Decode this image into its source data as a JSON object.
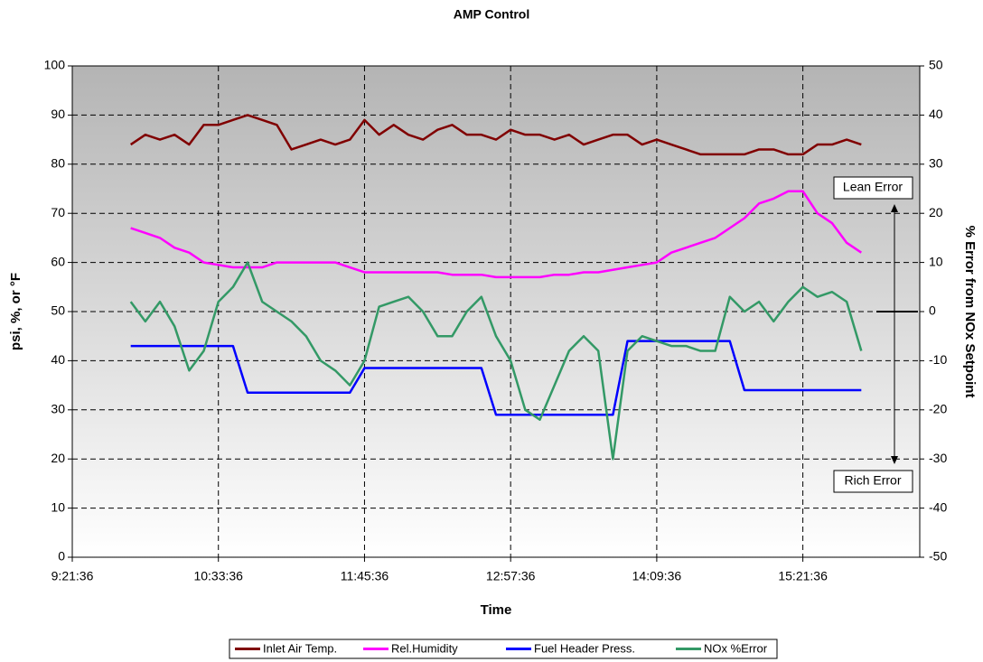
{
  "chart_data": {
    "type": "line",
    "title": "AMP Control",
    "xlabel": "Time",
    "ylabel": "psi, %, or °F",
    "y2label": "% Error from NOx Setpoint",
    "annotations": [
      "Lean Error",
      "Rich Error"
    ],
    "xlim": [
      0.39,
      0.68
    ],
    "xticks": [
      {
        "value": 0.39,
        "label": "9:21:36"
      },
      {
        "value": 0.44,
        "label": "10:33:36"
      },
      {
        "value": 0.49,
        "label": "11:45:36"
      },
      {
        "value": 0.54,
        "label": "12:57:36"
      },
      {
        "value": 0.59,
        "label": "14:09:36"
      },
      {
        "value": 0.64,
        "label": "15:21:36"
      }
    ],
    "ylim": [
      0,
      100
    ],
    "yticks": [
      0,
      10,
      20,
      30,
      40,
      50,
      60,
      70,
      80,
      90,
      100
    ],
    "y2lim": [
      -50,
      50
    ],
    "y2ticks": [
      -50,
      -40,
      -30,
      -20,
      -10,
      0,
      10,
      20,
      30,
      40,
      50
    ],
    "grid": true,
    "legend": "bottom",
    "x": [
      0.41,
      0.415,
      0.42,
      0.425,
      0.43,
      0.435,
      0.44,
      0.445,
      0.45,
      0.455,
      0.46,
      0.465,
      0.47,
      0.475,
      0.48,
      0.485,
      0.49,
      0.495,
      0.5,
      0.505,
      0.51,
      0.515,
      0.52,
      0.525,
      0.53,
      0.535,
      0.54,
      0.545,
      0.55,
      0.555,
      0.56,
      0.565,
      0.57,
      0.575,
      0.58,
      0.585,
      0.59,
      0.595,
      0.6,
      0.605,
      0.61,
      0.615,
      0.62,
      0.625,
      0.63,
      0.635,
      0.64,
      0.645,
      0.65,
      0.655,
      0.66
    ],
    "series": [
      {
        "name": "Inlet Air Temp.",
        "color": "#800000",
        "values": [
          84,
          86,
          85,
          86,
          84,
          88,
          88,
          89,
          90,
          89,
          88,
          83,
          84,
          85,
          84,
          85,
          89,
          86,
          88,
          86,
          85,
          87,
          88,
          86,
          86,
          85,
          87,
          86,
          86,
          85,
          86,
          84,
          85,
          86,
          86,
          84,
          85,
          84,
          83,
          82,
          82,
          82,
          82,
          83,
          83,
          82,
          82,
          84,
          84,
          85,
          84
        ]
      },
      {
        "name": "Rel.Humidity",
        "color": "#ff00ff",
        "values": [
          67,
          66,
          65,
          63,
          62,
          60,
          59.5,
          59,
          59,
          59,
          60,
          60,
          60,
          60,
          60,
          59,
          58,
          58,
          58,
          58,
          58,
          58,
          57.5,
          57.5,
          57.5,
          57,
          57,
          57,
          57,
          57.5,
          57.5,
          58,
          58,
          58.5,
          59,
          59.5,
          60,
          62,
          63,
          64,
          65,
          67,
          69,
          72,
          73,
          74.5,
          74.5,
          70,
          68,
          64,
          62
        ]
      },
      {
        "name": "Fuel Header Press.",
        "color": "#0000ff",
        "values": [
          43,
          43,
          43,
          43,
          43,
          43,
          43,
          43,
          33.5,
          33.5,
          33.5,
          33.5,
          33.5,
          33.5,
          33.5,
          33.5,
          38.5,
          38.5,
          38.5,
          38.5,
          38.5,
          38.5,
          38.5,
          38.5,
          38.5,
          29,
          29,
          29,
          29,
          29,
          29,
          29,
          29,
          29,
          44,
          44,
          44,
          44,
          44,
          44,
          44,
          44,
          34,
          34,
          34,
          34,
          34,
          34,
          34,
          34,
          34
        ]
      },
      {
        "name": "NOx %Error",
        "color": "#339966",
        "axis": "y2",
        "values": [
          2,
          -2,
          2,
          -3,
          -12,
          -8,
          2,
          5,
          10,
          2,
          0,
          -2,
          -5,
          -10,
          -12,
          -15,
          -10,
          1,
          2,
          3,
          0,
          -5,
          -5,
          0,
          3,
          -5,
          -10,
          -20,
          -22,
          -15,
          -8,
          -5,
          -8,
          -30,
          -8,
          -5,
          -6,
          -7,
          -7,
          -8,
          -8,
          3,
          0,
          2,
          -2,
          2,
          5,
          3,
          4,
          2,
          -8
        ]
      }
    ]
  }
}
